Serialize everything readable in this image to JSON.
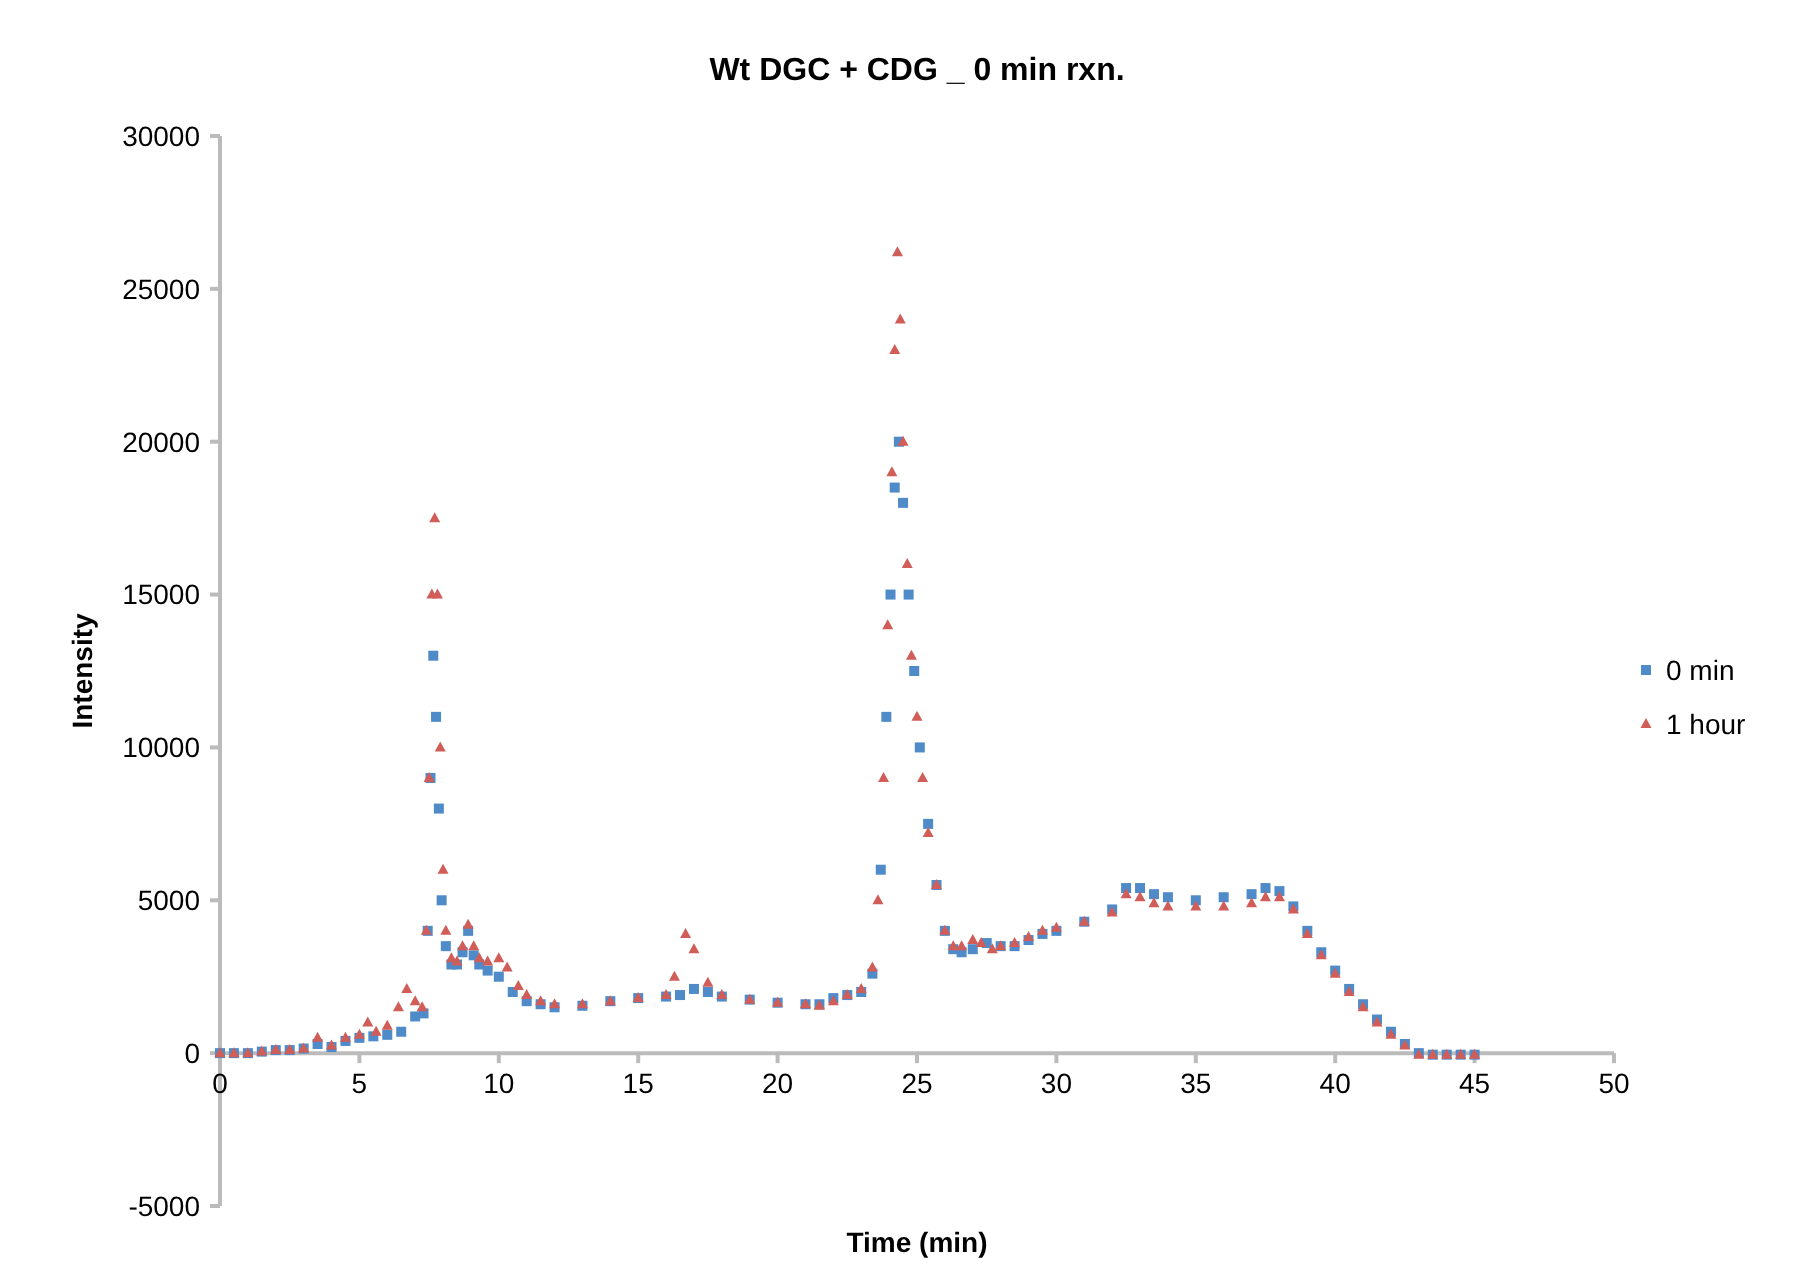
{
  "chart_data": {
    "type": "scatter",
    "title": "Wt DGC + CDG _ 0 min rxn.",
    "xlabel": "Time (min)",
    "ylabel": "Intensity",
    "xlim": [
      0,
      50
    ],
    "xticks": [
      0,
      5,
      10,
      15,
      20,
      25,
      30,
      35,
      40,
      45,
      50
    ],
    "ylim": [
      -5000,
      30000
    ],
    "yticks": [
      -5000,
      0,
      5000,
      10000,
      15000,
      20000,
      25000,
      30000
    ],
    "grid": false,
    "legend": "right",
    "series": [
      {
        "name": "0 min",
        "color": "#4f8ac9",
        "marker": "square",
        "x": [
          0,
          0.5,
          1,
          1.5,
          2,
          2.5,
          3,
          3.5,
          4,
          4.5,
          5,
          5.5,
          6,
          6.5,
          7,
          7.3,
          7.45,
          7.55,
          7.65,
          7.75,
          7.85,
          7.95,
          8.1,
          8.3,
          8.5,
          8.7,
          8.9,
          9.1,
          9.3,
          9.6,
          10,
          10.5,
          11,
          11.5,
          12,
          13,
          14,
          15,
          16,
          16.5,
          17,
          17.5,
          18,
          19,
          20,
          21,
          21.5,
          22,
          22.5,
          23,
          23.4,
          23.7,
          23.9,
          24.05,
          24.2,
          24.35,
          24.5,
          24.7,
          24.9,
          25.1,
          25.4,
          25.7,
          26,
          26.3,
          26.6,
          27,
          27.5,
          28,
          28.5,
          29,
          29.5,
          30,
          31,
          32,
          32.5,
          33,
          33.5,
          34,
          35,
          36,
          37,
          37.5,
          38,
          38.5,
          39,
          39.5,
          40,
          40.5,
          41,
          41.5,
          42,
          42.5,
          43,
          43.5,
          44,
          44.5,
          45
        ],
        "values": [
          0,
          0,
          0,
          50,
          100,
          100,
          150,
          300,
          200,
          400,
          500,
          550,
          600,
          700,
          1200,
          1300,
          4000,
          9000,
          13000,
          11000,
          8000,
          5000,
          3500,
          2900,
          2900,
          3300,
          4000,
          3200,
          2900,
          2700,
          2500,
          2000,
          1700,
          1600,
          1500,
          1550,
          1700,
          1800,
          1850,
          1900,
          2100,
          2000,
          1850,
          1750,
          1650,
          1600,
          1600,
          1800,
          1900,
          2000,
          2600,
          6000,
          11000,
          15000,
          18500,
          20000,
          18000,
          15000,
          12500,
          10000,
          7500,
          5500,
          4000,
          3400,
          3300,
          3400,
          3600,
          3500,
          3500,
          3700,
          3900,
          4000,
          4300,
          4700,
          5400,
          5400,
          5200,
          5100,
          5000,
          5100,
          5200,
          5400,
          5300,
          4800,
          4000,
          3300,
          2700,
          2100,
          1600,
          1100,
          700,
          300,
          0,
          -50,
          -50,
          -50,
          -50
        ]
      },
      {
        "name": "1 hour",
        "color": "#d05d58",
        "marker": "triangle",
        "x": [
          0,
          0.5,
          1,
          1.5,
          2,
          2.5,
          3,
          3.5,
          4,
          4.5,
          5,
          5.3,
          5.6,
          6,
          6.4,
          6.7,
          7,
          7.25,
          7.4,
          7.5,
          7.6,
          7.7,
          7.8,
          7.9,
          8,
          8.1,
          8.3,
          8.5,
          8.7,
          8.9,
          9.1,
          9.3,
          9.6,
          10,
          10.3,
          10.7,
          11,
          11.5,
          12,
          13,
          14,
          15,
          16,
          16.3,
          16.7,
          17,
          17.5,
          18,
          19,
          20,
          21,
          21.5,
          22,
          22.5,
          23,
          23.4,
          23.6,
          23.8,
          23.95,
          24.1,
          24.2,
          24.3,
          24.4,
          24.5,
          24.65,
          24.8,
          25,
          25.2,
          25.4,
          25.7,
          26,
          26.3,
          26.6,
          27,
          27.3,
          27.7,
          28,
          28.5,
          29,
          29.5,
          30,
          31,
          32,
          32.5,
          33,
          33.5,
          34,
          35,
          36,
          37,
          37.5,
          38,
          38.5,
          39,
          39.5,
          40,
          40.5,
          41,
          41.5,
          42,
          42.5,
          43,
          43.5,
          44,
          44.5,
          45
        ],
        "values": [
          0,
          0,
          0,
          50,
          100,
          100,
          150,
          500,
          250,
          500,
          600,
          1000,
          700,
          900,
          1500,
          2100,
          1700,
          1500,
          4000,
          9000,
          15000,
          17500,
          15000,
          10000,
          6000,
          4000,
          3100,
          3000,
          3500,
          4200,
          3500,
          3100,
          3000,
          3100,
          2800,
          2200,
          1900,
          1700,
          1600,
          1600,
          1700,
          1800,
          1900,
          2500,
          3900,
          3400,
          2300,
          1900,
          1750,
          1650,
          1600,
          1550,
          1700,
          1900,
          2100,
          2800,
          5000,
          9000,
          14000,
          19000,
          23000,
          26200,
          24000,
          20000,
          16000,
          13000,
          11000,
          9000,
          7200,
          5500,
          4000,
          3500,
          3500,
          3700,
          3600,
          3400,
          3500,
          3600,
          3800,
          4000,
          4100,
          4300,
          4600,
          5200,
          5100,
          4900,
          4800,
          4800,
          4800,
          4900,
          5100,
          5100,
          4700,
          3900,
          3200,
          2600,
          2000,
          1500,
          1000,
          600,
          250,
          -50,
          -50,
          -50,
          -50,
          -50
        ]
      }
    ]
  }
}
